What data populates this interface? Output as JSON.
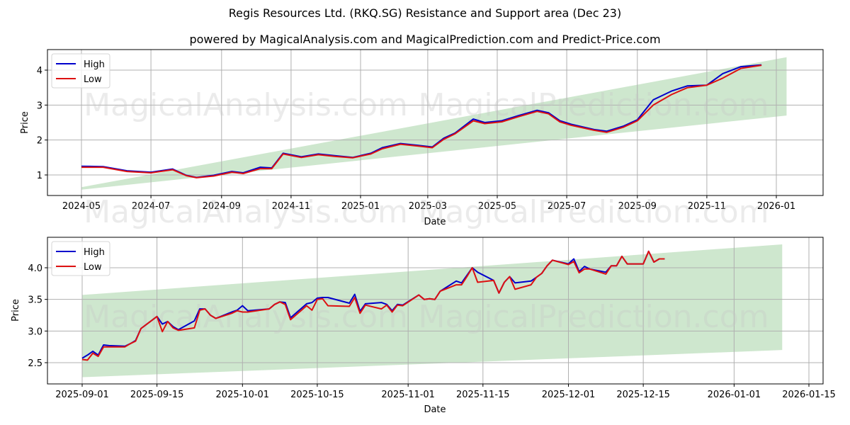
{
  "header": {
    "title": "Regis Resources Ltd. (RKQ.SG) Resistance and Support area (Dec 23)",
    "subtitle": "powered by MagicalAnalysis.com and MagicalPrediction.com and Predict-Price.com"
  },
  "watermarks": [
    "MagicalAnalysis.com",
    "MagicalPrediction.com"
  ],
  "colors": {
    "high": "#0000cc",
    "low": "#dd1111",
    "band": "#a6d3a6"
  },
  "chart_data": [
    {
      "type": "line",
      "title": "Regis Resources Ltd. (RKQ.SG) Resistance and Support area (Dec 23)",
      "xlabel": "Date",
      "ylabel": "Price",
      "x_ticks": [
        "2024-05",
        "2024-07",
        "2024-09",
        "2024-11",
        "2025-01",
        "2025-03",
        "2025-05",
        "2025-07",
        "2025-09",
        "2025-11",
        "2026-01"
      ],
      "y_ticks": [
        "1",
        "2",
        "3",
        "4"
      ],
      "ylim": [
        0.4,
        4.55
      ],
      "grid": true,
      "legend": {
        "position": "upper left",
        "entries": [
          "High",
          "Low"
        ]
      },
      "x": [
        "2024-05-01",
        "2024-05-20",
        "2024-06-10",
        "2024-07-01",
        "2024-07-20",
        "2024-08-01",
        "2024-08-10",
        "2024-08-25",
        "2024-09-10",
        "2024-09-20",
        "2024-10-05",
        "2024-10-15",
        "2024-10-25",
        "2024-11-10",
        "2024-11-25",
        "2024-12-10",
        "2024-12-25",
        "2025-01-10",
        "2025-01-20",
        "2025-02-05",
        "2025-02-20",
        "2025-03-05",
        "2025-03-15",
        "2025-03-25",
        "2025-04-10",
        "2025-04-20",
        "2025-05-05",
        "2025-05-20",
        "2025-06-05",
        "2025-06-15",
        "2025-06-25",
        "2025-07-05",
        "2025-07-25",
        "2025-08-05",
        "2025-08-20",
        "2025-09-01",
        "2025-09-15",
        "2025-10-01",
        "2025-10-15",
        "2025-11-01",
        "2025-11-15",
        "2025-12-01",
        "2025-12-19"
      ],
      "series": [
        {
          "name": "High",
          "color": "#0000cc",
          "values": [
            1.25,
            1.24,
            1.12,
            1.08,
            1.17,
            0.99,
            0.93,
            0.99,
            1.1,
            1.06,
            1.22,
            1.2,
            1.62,
            1.52,
            1.6,
            1.55,
            1.5,
            1.62,
            1.78,
            1.9,
            1.85,
            1.8,
            2.05,
            2.2,
            2.6,
            2.5,
            2.55,
            2.7,
            2.85,
            2.78,
            2.55,
            2.45,
            2.3,
            2.25,
            2.4,
            2.58,
            3.15,
            3.4,
            3.55,
            3.57,
            3.9,
            4.1,
            4.15
          ]
        },
        {
          "name": "Low",
          "color": "#dd1111",
          "values": [
            1.22,
            1.22,
            1.1,
            1.06,
            1.15,
            0.98,
            0.92,
            0.97,
            1.08,
            1.04,
            1.18,
            1.18,
            1.6,
            1.5,
            1.58,
            1.53,
            1.49,
            1.6,
            1.75,
            1.88,
            1.83,
            1.78,
            2.02,
            2.18,
            2.55,
            2.47,
            2.52,
            2.67,
            2.82,
            2.75,
            2.52,
            2.42,
            2.28,
            2.22,
            2.37,
            2.55,
            3.0,
            3.3,
            3.5,
            3.57,
            3.77,
            4.05,
            4.14
          ]
        }
      ],
      "band": {
        "x": [
          "2024-05-01",
          "2026-01-10"
        ],
        "upper": [
          0.65,
          4.37
        ],
        "lower": [
          0.58,
          2.7
        ]
      }
    },
    {
      "type": "line",
      "xlabel": "Date",
      "ylabel": "Price",
      "x_ticks": [
        "2025-09-01",
        "2025-09-15",
        "2025-10-01",
        "2025-10-15",
        "2025-11-01",
        "2025-11-15",
        "2025-12-01",
        "2025-12-15",
        "2026-01-01",
        "2026-01-15"
      ],
      "y_ticks": [
        "2.5",
        "3.0",
        "3.5",
        "4.0"
      ],
      "ylim": [
        2.15,
        4.45
      ],
      "grid": true,
      "legend": {
        "position": "upper left",
        "entries": [
          "High",
          "Low"
        ]
      },
      "x": [
        "2025-09-01",
        "2025-09-02",
        "2025-09-03",
        "2025-09-04",
        "2025-09-05",
        "2025-09-06",
        "2025-09-09",
        "2025-09-10",
        "2025-09-11",
        "2025-09-12",
        "2025-09-15",
        "2025-09-16",
        "2025-09-17",
        "2025-09-18",
        "2025-09-19",
        "2025-09-22",
        "2025-09-23",
        "2025-09-24",
        "2025-09-25",
        "2025-09-26",
        "2025-09-29",
        "2025-09-30",
        "2025-10-01",
        "2025-10-02",
        "2025-10-06",
        "2025-10-07",
        "2025-10-08",
        "2025-10-09",
        "2025-10-10",
        "2025-10-13",
        "2025-10-14",
        "2025-10-15",
        "2025-10-16",
        "2025-10-17",
        "2025-10-21",
        "2025-10-22",
        "2025-10-23",
        "2025-10-24",
        "2025-10-27",
        "2025-10-28",
        "2025-10-29",
        "2025-10-30",
        "2025-10-31",
        "2025-11-03",
        "2025-11-04",
        "2025-11-05",
        "2025-11-06",
        "2025-11-07",
        "2025-11-10",
        "2025-11-11",
        "2025-11-12",
        "2025-11-13",
        "2025-11-14",
        "2025-11-17",
        "2025-11-18",
        "2025-11-19",
        "2025-11-20",
        "2025-11-21",
        "2025-11-24",
        "2025-11-25",
        "2025-11-26",
        "2025-11-27",
        "2025-11-28",
        "2025-12-01",
        "2025-12-02",
        "2025-12-03",
        "2025-12-04",
        "2025-12-05",
        "2025-12-08",
        "2025-12-09",
        "2025-12-10",
        "2025-12-11",
        "2025-12-12",
        "2025-12-15",
        "2025-12-16",
        "2025-12-17",
        "2025-12-18",
        "2025-12-19"
      ],
      "series": [
        {
          "name": "High",
          "color": "#0000cc",
          "values": [
            2.57,
            2.62,
            2.68,
            2.62,
            2.78,
            2.77,
            2.76,
            2.8,
            2.85,
            3.04,
            3.23,
            3.11,
            3.15,
            3.07,
            3.02,
            3.16,
            3.35,
            3.35,
            3.25,
            3.2,
            3.3,
            3.33,
            3.4,
            3.32,
            3.35,
            3.42,
            3.46,
            3.45,
            3.21,
            3.43,
            3.45,
            3.52,
            3.53,
            3.53,
            3.44,
            3.58,
            3.31,
            3.43,
            3.45,
            3.42,
            3.32,
            3.42,
            3.41,
            3.57,
            3.5,
            3.51,
            3.5,
            3.63,
            3.79,
            3.76,
            3.88,
            4.0,
            3.93,
            3.8,
            3.6,
            3.77,
            3.86,
            3.76,
            3.79,
            3.85,
            3.91,
            4.03,
            4.12,
            4.06,
            4.14,
            3.94,
            4.02,
            3.98,
            3.93,
            4.03,
            4.03,
            4.18,
            4.06,
            4.06,
            4.26,
            4.09,
            4.14,
            4.14
          ]
        },
        {
          "name": "Low",
          "color": "#dd1111",
          "values": [
            2.55,
            2.54,
            2.65,
            2.6,
            2.75,
            2.75,
            2.75,
            2.8,
            2.84,
            3.04,
            3.23,
            2.99,
            3.15,
            3.05,
            3.01,
            3.05,
            3.33,
            3.35,
            3.25,
            3.2,
            3.28,
            3.32,
            3.3,
            3.3,
            3.35,
            3.42,
            3.46,
            3.42,
            3.18,
            3.4,
            3.33,
            3.5,
            3.51,
            3.4,
            3.39,
            3.53,
            3.28,
            3.41,
            3.35,
            3.41,
            3.3,
            3.41,
            3.4,
            3.57,
            3.5,
            3.51,
            3.5,
            3.63,
            3.73,
            3.73,
            3.86,
            4.0,
            3.77,
            3.8,
            3.6,
            3.77,
            3.86,
            3.66,
            3.73,
            3.85,
            3.91,
            4.03,
            4.12,
            4.05,
            4.1,
            3.92,
            3.98,
            3.98,
            3.9,
            4.03,
            4.03,
            4.18,
            4.06,
            4.06,
            4.26,
            4.09,
            4.14,
            4.14
          ]
        }
      ],
      "band": {
        "x": [
          "2025-09-01",
          "2026-01-10"
        ],
        "upper": [
          3.57,
          4.37
        ],
        "lower": [
          2.27,
          2.7
        ]
      }
    }
  ]
}
